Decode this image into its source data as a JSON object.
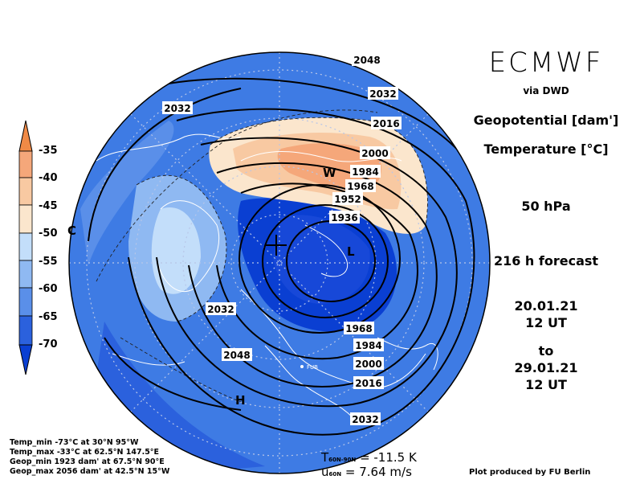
{
  "header": {
    "brand": "ECMWF",
    "via": "via DWD",
    "var1": "Geopotential [dam']",
    "var2": "Temperature [°C]",
    "level": "50 hPa",
    "forecast": "216 h forecast",
    "init_date": "20.01.21",
    "init_time": "12 UT",
    "to": "to",
    "valid_date": "29.01.21",
    "valid_time": "12 UT"
  },
  "colorbar": {
    "labels": [
      "-35",
      "-40",
      "-45",
      "-50",
      "-55",
      "-60",
      "-65",
      "-70"
    ],
    "colors": [
      "#f08a46",
      "#f5a77a",
      "#f8c9a2",
      "#fbe6cd",
      "#c3defa",
      "#8fb9f2",
      "#5a8fe9",
      "#2b61dd",
      "#0a3fd2"
    ]
  },
  "stats": [
    "Temp_min -73°C at 30°N 95°W",
    "Temp_max -33°C at 62.5°N 147.5°E",
    "Geop_min 1923 dam' at 67.5°N 90°E",
    "Geop_max 2056 dam' at 42.5°N 15°W"
  ],
  "metrics": {
    "t_label": "T",
    "t_sub": "60N-90N",
    "t_value": "= -11.5 K",
    "u_label": "u",
    "u_sub": "60N",
    "u_value": "= 7.64 m/s"
  },
  "credit": "Plot produced by FU Berlin",
  "map": {
    "contour_labels": [
      "2048",
      "2032",
      "2016",
      "2000",
      "1984",
      "1968",
      "1952",
      "1936",
      "2032",
      "2032",
      "1968",
      "1984",
      "2000",
      "2016",
      "2032",
      "2048"
    ],
    "markers": {
      "warm": "W",
      "low": "L",
      "high": "H",
      "cold": "C"
    },
    "station_label": "FUB",
    "colors": {
      "base": "#2e6fe0",
      "deep": "#0d43d6",
      "pale": "#c3defa",
      "warm1": "#fbe6cd",
      "warm2": "#f8c9a2",
      "warm3": "#f5a77a"
    }
  }
}
